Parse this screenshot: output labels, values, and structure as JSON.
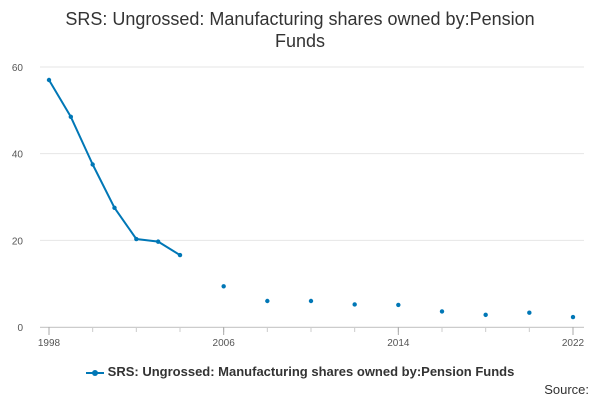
{
  "chart_data": {
    "type": "line",
    "title_lines": [
      "SRS: Ungrossed: Manufacturing shares owned by:Pension",
      "Funds"
    ],
    "xlabel": "",
    "ylabel": "",
    "x": [
      1998,
      1999,
      2000,
      2001,
      2002,
      2003,
      2004,
      2006,
      2008,
      2010,
      2012,
      2014,
      2016,
      2018,
      2020,
      2022
    ],
    "series": [
      {
        "name": "SRS: Ungrossed: Manufacturing shares owned by:Pension Funds",
        "values": [
          57.0,
          48.5,
          37.5,
          27.5,
          20.3,
          19.7,
          16.6,
          9.4,
          6.0,
          6.0,
          5.2,
          5.1,
          3.6,
          2.8,
          3.3,
          2.3
        ]
      }
    ],
    "line_segment_until": 2004,
    "xlim": [
      1998,
      2022
    ],
    "ylim": [
      0,
      60
    ],
    "yticks": [
      0,
      20,
      40,
      60
    ],
    "xticks": [
      1998,
      2006,
      2014,
      2022
    ],
    "grid": true,
    "legend_position": "bottom",
    "color": "#0077b6"
  },
  "source_label": "Source:"
}
